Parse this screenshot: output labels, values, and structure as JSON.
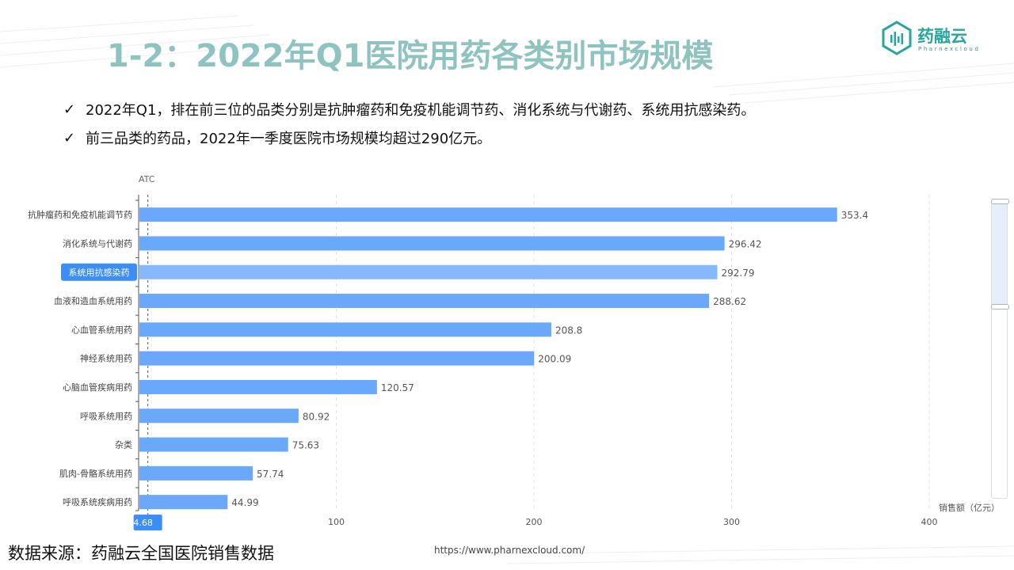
{
  "slide": {
    "title": "1-2：2022年Q1医院用药各类别市场规模",
    "bullets": [
      "2022年Q1，排在前三位的品类分别是抗肿瘤药和免疫机能调节药、消化系统与代谢药、系统用抗感染药。",
      "前三品类的药品，2022年一季度医院市场规模均超过290亿元。"
    ],
    "check_symbol": "✓",
    "source": "数据来源：药融云全国医院销售数据",
    "url": "https://www.pharnexcloud.com/"
  },
  "logo": {
    "name": "药融云",
    "sub": "Pharnexcloud"
  },
  "colors": {
    "bar": "#6aa8fb",
    "bar_highlight": "#85b8fc",
    "title": "#8ec3c0",
    "brand": "#27a59c",
    "tag": "#3b8ef5"
  },
  "chart_data": {
    "type": "bar",
    "orientation": "horizontal",
    "ylabel": "ATC",
    "xlabel": "销售额（亿元）",
    "categories": [
      "抗肿瘤药和免疫机能调节药",
      "消化系统与代谢药",
      "系统用抗感染药",
      "血液和造血系统用药",
      "心血管系统用药",
      "神经系统用药",
      "心脑血管疾病用药",
      "呼吸系统用药",
      "杂类",
      "肌肉-骨骼系统用药",
      "呼吸系统疾病用药"
    ],
    "values": [
      353.4,
      296.42,
      292.79,
      288.62,
      208.8,
      200.09,
      120.57,
      80.92,
      75.63,
      57.74,
      44.99
    ],
    "value_labels": [
      "353.4",
      "296.42",
      "292.79",
      "288.62",
      "208.8",
      "200.09",
      "120.57",
      "80.92",
      "75.63",
      "57.74",
      "44.99"
    ],
    "xlim": [
      0,
      400
    ],
    "xticks": [
      "100",
      "200",
      "300",
      "400"
    ],
    "xtick_values": [
      100,
      200,
      300,
      400
    ],
    "highlighted_category": "系统用抗感染药",
    "pointer_value": 4.68,
    "pointer_label": "4.68",
    "grid": true
  }
}
